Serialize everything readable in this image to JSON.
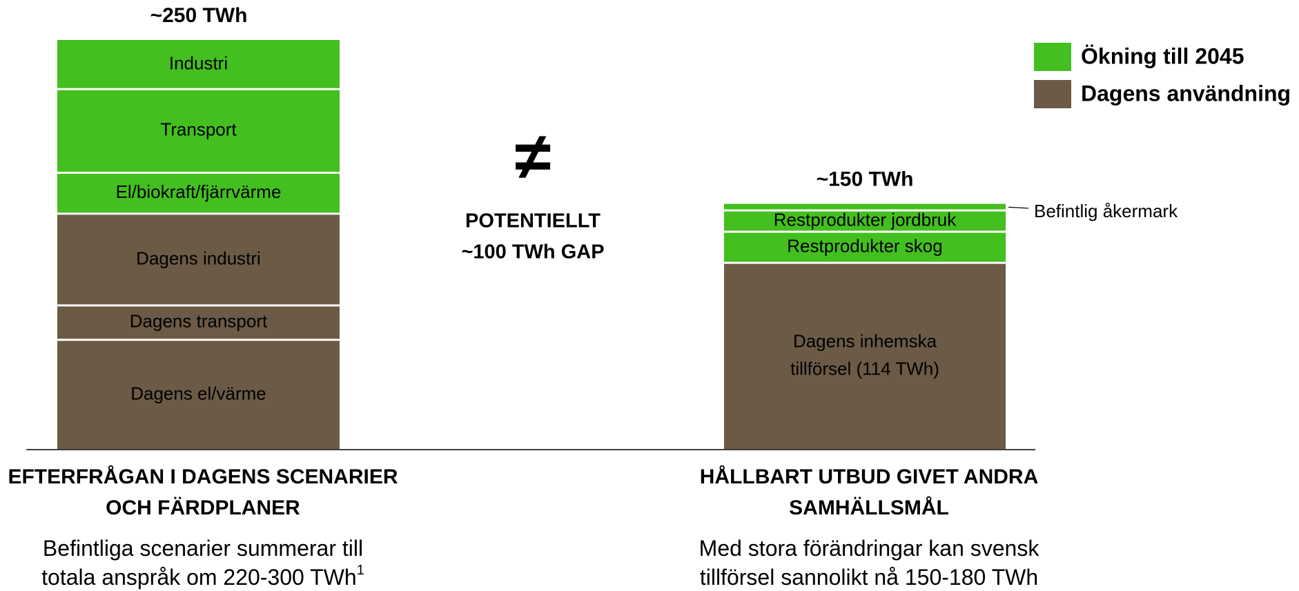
{
  "chart_data": {
    "type": "stacked_bar",
    "legend": [
      {
        "name": "Ökning till 2045",
        "color": "#43bf1f"
      },
      {
        "name": "Dagens användning",
        "color": "#6b5a45"
      }
    ],
    "annotation": {
      "symbol": "≠",
      "lines": [
        "POTENTIELLT",
        "~100 TWh GAP"
      ]
    },
    "bars": [
      {
        "total_label": "~250 TWh",
        "label_lines": [
          "EFTERFRÅGAN I DAGENS SCENARIER",
          "OCH FÄRDPLANER"
        ],
        "note_lines": [
          "Befintliga scenarier summerar till",
          "totala anspråk om 220-300 TWh"
        ],
        "note_mark": "1",
        "segments": [
          {
            "name": [
              "Dagens el/värme"
            ],
            "value": 67,
            "color": "#6b5a45"
          },
          {
            "name": [
              "Dagens transport"
            ],
            "value": 21,
            "color": "#6b5a45"
          },
          {
            "name": [
              "Dagens industri"
            ],
            "value": 56,
            "color": "#6b5a45"
          },
          {
            "name": [
              "El/biokraft/fjärrvärme"
            ],
            "value": 25,
            "color": "#43bf1f"
          },
          {
            "name": [
              "Transport"
            ],
            "value": 51,
            "color": "#43bf1f"
          },
          {
            "name": [
              "Industri"
            ],
            "value": 30,
            "color": "#43bf1f"
          }
        ]
      },
      {
        "total_label": "~150 TWh",
        "label_lines": [
          "HÅLLBART UTBUD GIVET ANDRA",
          "SAMHÄLLSMÅL"
        ],
        "note_lines": [
          "Med stora förändringar kan svensk",
          "tillförsel sannolikt nå 150-180 TWh"
        ],
        "segments": [
          {
            "name": [
              "Dagens inhemska",
              "tillförsel (114 TWh)"
            ],
            "value": 114,
            "color": "#6b5a45"
          },
          {
            "name": [
              "Restprodukter skog"
            ],
            "value": 19,
            "color": "#43bf1f"
          },
          {
            "name": [
              "Restprodukter jordbruk"
            ],
            "value": 13,
            "color": "#43bf1f"
          },
          {
            "name": [
              "Befintlig åkermark"
            ],
            "value": 4,
            "color": "#43bf1f"
          }
        ]
      }
    ]
  }
}
